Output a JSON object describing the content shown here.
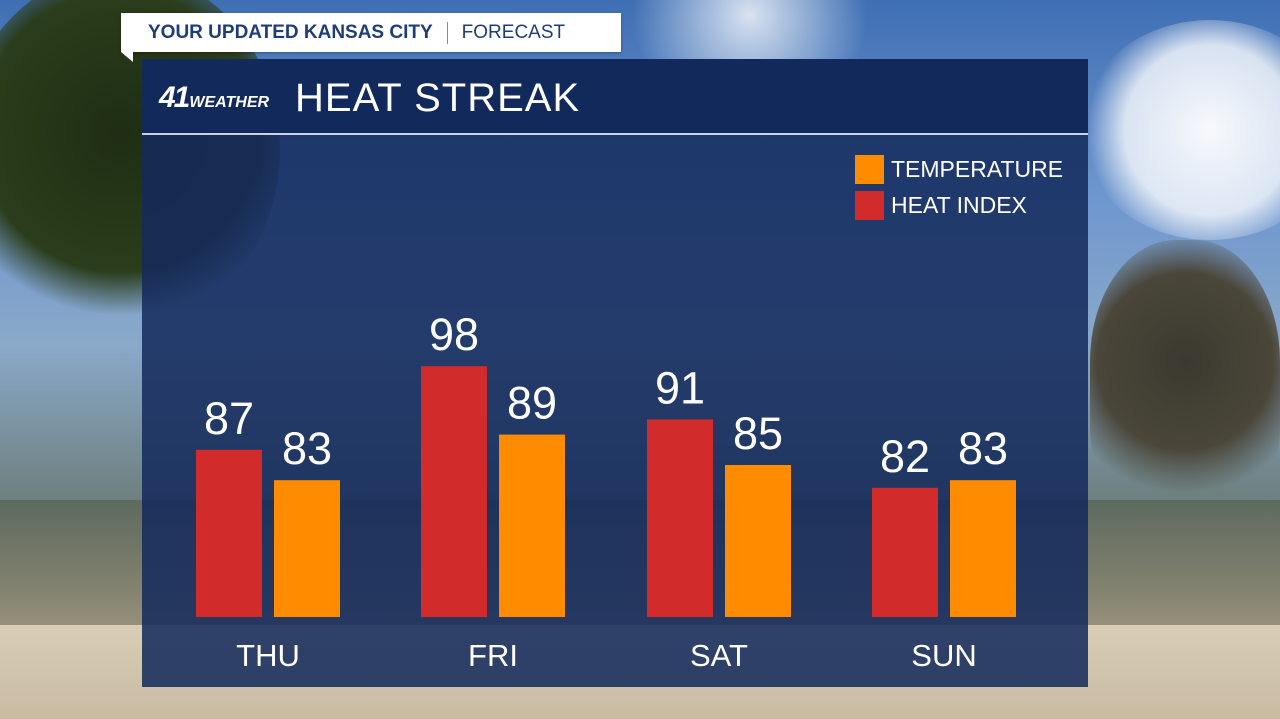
{
  "header": {
    "title": "YOUR UPDATED KANSAS CITY",
    "subtitle": "FORECAST"
  },
  "logo": {
    "number": "41",
    "word": "WEATHER"
  },
  "colors": {
    "heat_index": "#d12b2b",
    "temperature": "#ff8c00",
    "panel": "#14295c"
  },
  "chart_data": {
    "type": "bar",
    "title": "HEAT STREAK",
    "categories": [
      "THU",
      "FRI",
      "SAT",
      "SUN"
    ],
    "series": [
      {
        "name": "HEAT INDEX",
        "values": [
          87,
          98,
          91,
          82
        ]
      },
      {
        "name": "TEMPERATURE",
        "values": [
          83,
          89,
          85,
          83
        ]
      }
    ],
    "legend": {
      "placement": "top-right",
      "entries": [
        "TEMPERATURE",
        "HEAT INDEX"
      ]
    },
    "grid": false,
    "xlabel": "",
    "ylabel": ""
  }
}
